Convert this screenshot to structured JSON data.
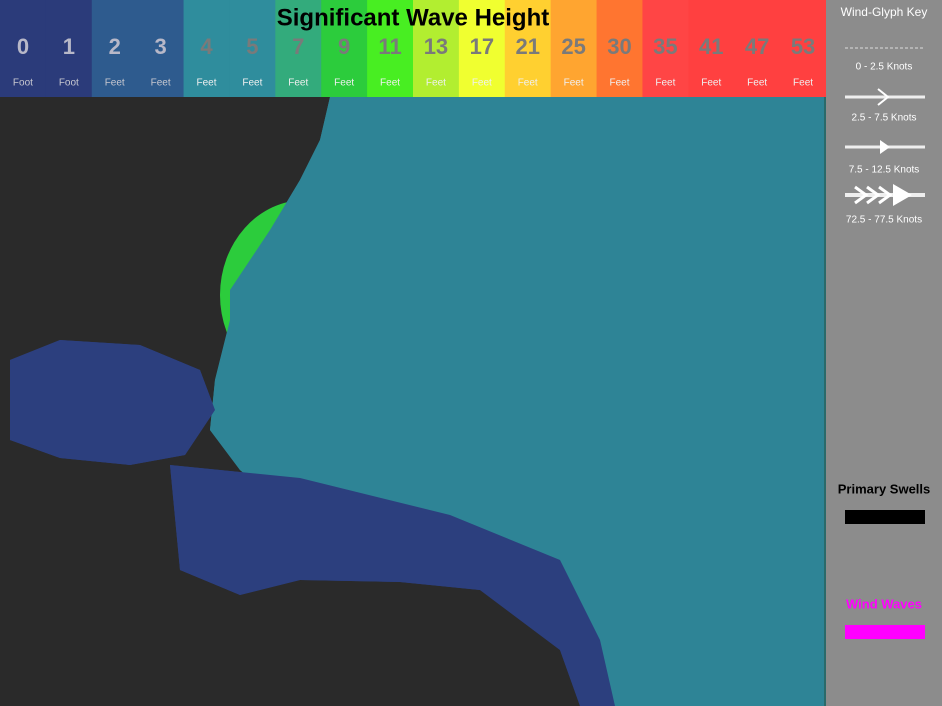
{
  "header": {
    "title": "Significant Wave Height",
    "scale": [
      {
        "value": 0,
        "unit": "Foot",
        "color": "#2b3b7a"
      },
      {
        "value": 1,
        "unit": "Foot",
        "color": "#2b3b7a"
      },
      {
        "value": 2,
        "unit": "Feet",
        "color": "#2e5b8e"
      },
      {
        "value": 3,
        "unit": "Feet",
        "color": "#2e5b8e"
      },
      {
        "value": 4,
        "unit": "Feet",
        "color": "#2f8d9d"
      },
      {
        "value": 5,
        "unit": "Feet",
        "color": "#2f8d9d"
      },
      {
        "value": 7,
        "unit": "Feet",
        "color": "#33ab7c"
      },
      {
        "value": 9,
        "unit": "Feet",
        "color": "#2ccc3c"
      },
      {
        "value": 11,
        "unit": "Feet",
        "color": "#48ee22"
      },
      {
        "value": 13,
        "unit": "Feet",
        "color": "#b2ee30"
      },
      {
        "value": 17,
        "unit": "Feet",
        "color": "#f0ff30"
      },
      {
        "value": 21,
        "unit": "Feet",
        "color": "#ffd030"
      },
      {
        "value": 25,
        "unit": "Feet",
        "color": "#ffa530"
      },
      {
        "value": 30,
        "unit": "Feet",
        "color": "#ff7530"
      },
      {
        "value": 35,
        "unit": "Feet",
        "color": "#ff4545"
      },
      {
        "value": 41,
        "unit": "Feet",
        "color": "#ff4040"
      },
      {
        "value": 47,
        "unit": "Feet",
        "color": "#ff4040"
      },
      {
        "value": 53,
        "unit": "Feet",
        "color": "#ff4040"
      }
    ]
  },
  "key": {
    "title": "Wind-Glyph Key",
    "entries": [
      "0 - 2.5 Knots",
      "2.5 - 7.5 Knots",
      "7.5 - 12.5 Knots",
      "72.5 - 77.5 Knots"
    ]
  },
  "legend": [
    {
      "label": "Primary Swells",
      "color": "#000000"
    },
    {
      "label": "Wind Waves",
      "color": "#ff00ff"
    }
  ]
}
